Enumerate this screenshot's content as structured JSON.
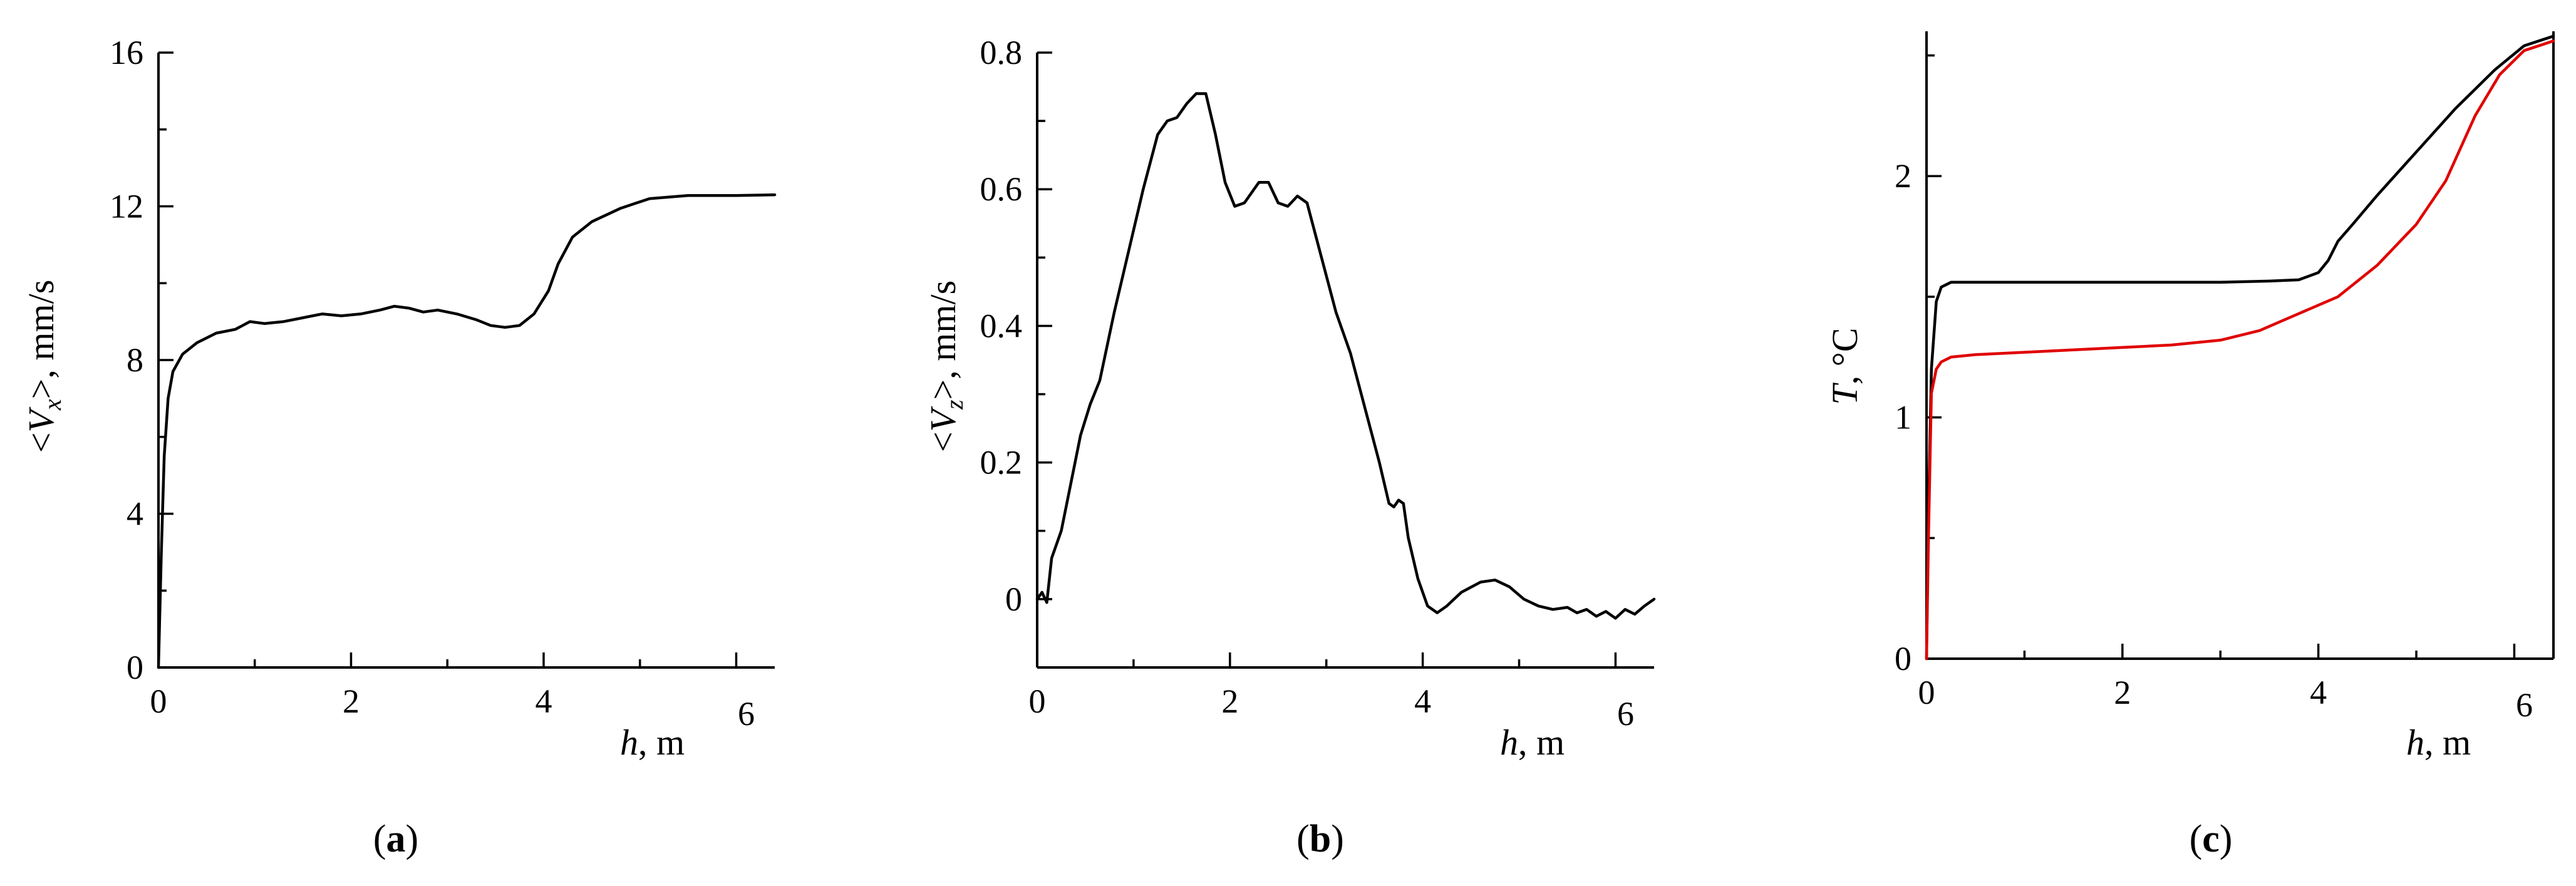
{
  "chart_data": [
    {
      "type": "line",
      "panel_label": "a",
      "xlabel": {
        "italic": "h",
        "rest": ", m"
      },
      "ylabel": {
        "pre": "<",
        "italic": "V",
        "sub": "x",
        "post": ">, mm/s"
      },
      "xlim": [
        0,
        6.4
      ],
      "ylim": [
        0,
        16
      ],
      "x_major_ticks": [
        0,
        2,
        4,
        6
      ],
      "x_minor_ticks": [
        1,
        3,
        5
      ],
      "y_major_ticks": [
        0,
        4,
        8,
        12,
        16
      ],
      "y_minor_ticks": [
        2,
        6,
        10,
        14
      ],
      "x_tick_labels": [
        "0",
        "2",
        "4",
        "6"
      ],
      "y_tick_labels": [
        "0",
        "4",
        "8",
        "12",
        "16"
      ],
      "series": [
        {
          "color": "#000000",
          "points": [
            [
              0,
              0
            ],
            [
              0.03,
              3
            ],
            [
              0.06,
              5.5
            ],
            [
              0.1,
              7
            ],
            [
              0.15,
              7.7
            ],
            [
              0.25,
              8.15
            ],
            [
              0.4,
              8.45
            ],
            [
              0.6,
              8.7
            ],
            [
              0.8,
              8.8
            ],
            [
              0.95,
              9.0
            ],
            [
              1.1,
              8.95
            ],
            [
              1.3,
              9.0
            ],
            [
              1.5,
              9.1
            ],
            [
              1.7,
              9.2
            ],
            [
              1.9,
              9.15
            ],
            [
              2.1,
              9.2
            ],
            [
              2.3,
              9.3
            ],
            [
              2.45,
              9.4
            ],
            [
              2.6,
              9.35
            ],
            [
              2.75,
              9.25
            ],
            [
              2.9,
              9.3
            ],
            [
              3.1,
              9.2
            ],
            [
              3.3,
              9.05
            ],
            [
              3.45,
              8.9
            ],
            [
              3.6,
              8.85
            ],
            [
              3.75,
              8.9
            ],
            [
              3.9,
              9.2
            ],
            [
              4.05,
              9.8
            ],
            [
              4.15,
              10.5
            ],
            [
              4.3,
              11.2
            ],
            [
              4.5,
              11.6
            ],
            [
              4.8,
              11.95
            ],
            [
              5.1,
              12.2
            ],
            [
              5.5,
              12.28
            ],
            [
              6.0,
              12.28
            ],
            [
              6.4,
              12.3
            ]
          ]
        }
      ]
    },
    {
      "type": "line",
      "panel_label": "b",
      "xlabel": {
        "italic": "h",
        "rest": ", m"
      },
      "ylabel": {
        "pre": "<",
        "italic": "V",
        "sub": "z",
        "post": ">, mm/s"
      },
      "xlim": [
        0,
        6.4
      ],
      "ylim": [
        -0.1,
        0.8
      ],
      "x_major_ticks": [
        0,
        2,
        4,
        6
      ],
      "x_minor_ticks": [
        1,
        3,
        5
      ],
      "y_major_ticks": [
        0,
        0.2,
        0.4,
        0.6,
        0.8
      ],
      "y_minor_ticks": [
        -0.1,
        0.1,
        0.3,
        0.5,
        0.7
      ],
      "x_tick_labels": [
        "0",
        "2",
        "4",
        "6"
      ],
      "y_tick_labels": [
        "0",
        "0.2",
        "0.4",
        "0.6",
        "0.8"
      ],
      "series": [
        {
          "color": "#000000",
          "points": [
            [
              0,
              0
            ],
            [
              0.05,
              0.01
            ],
            [
              0.1,
              -0.005
            ],
            [
              0.15,
              0.06
            ],
            [
              0.25,
              0.1
            ],
            [
              0.35,
              0.17
            ],
            [
              0.45,
              0.24
            ],
            [
              0.55,
              0.285
            ],
            [
              0.65,
              0.32
            ],
            [
              0.8,
              0.42
            ],
            [
              0.95,
              0.51
            ],
            [
              1.1,
              0.6
            ],
            [
              1.25,
              0.68
            ],
            [
              1.35,
              0.7
            ],
            [
              1.45,
              0.705
            ],
            [
              1.55,
              0.725
            ],
            [
              1.65,
              0.74
            ],
            [
              1.75,
              0.74
            ],
            [
              1.85,
              0.68
            ],
            [
              1.95,
              0.61
            ],
            [
              2.05,
              0.575
            ],
            [
              2.15,
              0.58
            ],
            [
              2.3,
              0.61
            ],
            [
              2.4,
              0.61
            ],
            [
              2.5,
              0.58
            ],
            [
              2.6,
              0.575
            ],
            [
              2.7,
              0.59
            ],
            [
              2.8,
              0.58
            ],
            [
              2.95,
              0.5
            ],
            [
              3.1,
              0.42
            ],
            [
              3.25,
              0.36
            ],
            [
              3.4,
              0.28
            ],
            [
              3.55,
              0.2
            ],
            [
              3.65,
              0.14
            ],
            [
              3.7,
              0.135
            ],
            [
              3.75,
              0.145
            ],
            [
              3.8,
              0.14
            ],
            [
              3.85,
              0.09
            ],
            [
              3.95,
              0.03
            ],
            [
              4.05,
              -0.01
            ],
            [
              4.15,
              -0.02
            ],
            [
              4.25,
              -0.01
            ],
            [
              4.4,
              0.01
            ],
            [
              4.6,
              0.025
            ],
            [
              4.75,
              0.028
            ],
            [
              4.9,
              0.018
            ],
            [
              5.05,
              0.0
            ],
            [
              5.2,
              -0.01
            ],
            [
              5.35,
              -0.015
            ],
            [
              5.5,
              -0.012
            ],
            [
              5.6,
              -0.02
            ],
            [
              5.7,
              -0.015
            ],
            [
              5.8,
              -0.025
            ],
            [
              5.9,
              -0.018
            ],
            [
              6.0,
              -0.028
            ],
            [
              6.1,
              -0.015
            ],
            [
              6.2,
              -0.022
            ],
            [
              6.3,
              -0.01
            ],
            [
              6.4,
              0.0
            ]
          ]
        }
      ]
    },
    {
      "type": "line",
      "panel_label": "c",
      "xlabel": {
        "italic": "h",
        "rest": ", m"
      },
      "ylabel": {
        "pre": "",
        "italic": "T",
        "sub": "",
        "post": ", °C"
      },
      "xlim": [
        0,
        6.4
      ],
      "ylim": [
        0,
        2.6
      ],
      "x_major_ticks": [
        0,
        2,
        4,
        6
      ],
      "x_minor_ticks": [
        1,
        3,
        5
      ],
      "y_major_ticks": [
        0,
        1,
        2
      ],
      "y_minor_ticks": [
        0.5,
        1.5,
        2.5
      ],
      "x_tick_labels": [
        "0",
        "2",
        "4",
        "6"
      ],
      "y_tick_labels": [
        "0",
        "1",
        "2"
      ],
      "series": [
        {
          "color": "#000000",
          "points": [
            [
              0,
              0
            ],
            [
              0.02,
              0.6
            ],
            [
              0.05,
              1.2
            ],
            [
              0.1,
              1.48
            ],
            [
              0.15,
              1.54
            ],
            [
              0.25,
              1.56
            ],
            [
              0.5,
              1.56
            ],
            [
              1,
              1.56
            ],
            [
              2,
              1.56
            ],
            [
              3,
              1.56
            ],
            [
              3.5,
              1.565
            ],
            [
              3.8,
              1.57
            ],
            [
              4.0,
              1.6
            ],
            [
              4.1,
              1.65
            ],
            [
              4.2,
              1.73
            ],
            [
              4.35,
              1.8
            ],
            [
              4.6,
              1.92
            ],
            [
              5.0,
              2.1
            ],
            [
              5.4,
              2.28
            ],
            [
              5.8,
              2.44
            ],
            [
              6.1,
              2.54
            ],
            [
              6.4,
              2.58
            ]
          ]
        },
        {
          "color": "#e00000",
          "points": [
            [
              0,
              0
            ],
            [
              0.02,
              0.5
            ],
            [
              0.05,
              1.1
            ],
            [
              0.1,
              1.2
            ],
            [
              0.15,
              1.23
            ],
            [
              0.25,
              1.25
            ],
            [
              0.5,
              1.26
            ],
            [
              1,
              1.27
            ],
            [
              1.5,
              1.28
            ],
            [
              2,
              1.29
            ],
            [
              2.5,
              1.3
            ],
            [
              3.0,
              1.32
            ],
            [
              3.4,
              1.36
            ],
            [
              3.8,
              1.43
            ],
            [
              4.2,
              1.5
            ],
            [
              4.6,
              1.63
            ],
            [
              5.0,
              1.8
            ],
            [
              5.3,
              1.98
            ],
            [
              5.6,
              2.25
            ],
            [
              5.85,
              2.42
            ],
            [
              6.1,
              2.52
            ],
            [
              6.4,
              2.56
            ]
          ]
        }
      ]
    }
  ]
}
